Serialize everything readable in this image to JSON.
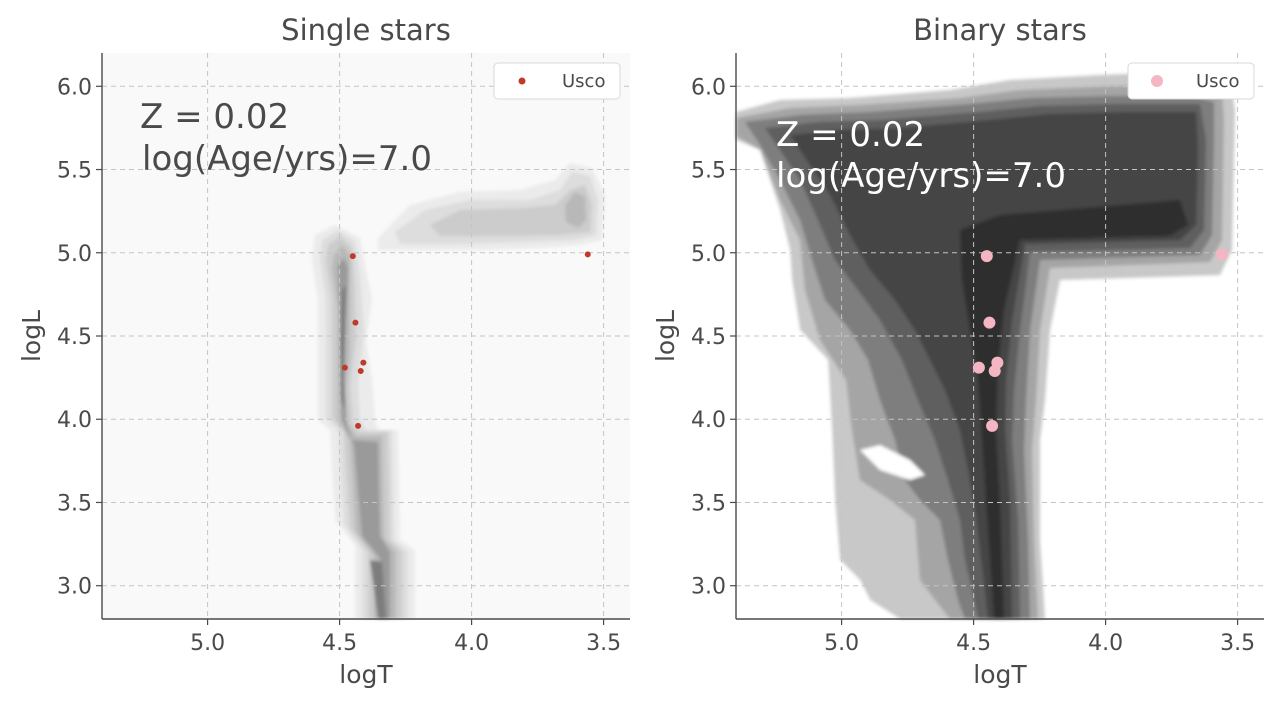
{
  "chart_data": [
    {
      "type": "scatter",
      "title": "Single stars",
      "xlabel": "logT",
      "ylabel": "logL",
      "xlim": [
        5.4,
        3.4
      ],
      "ylim": [
        2.8,
        6.2
      ],
      "x_inverted": true,
      "xticks": [
        "5.0",
        "4.5",
        "4.0",
        "3.5"
      ],
      "yticks": [
        "3.0",
        "3.5",
        "4.0",
        "4.5",
        "5.0",
        "5.5",
        "6.0"
      ],
      "grid": true,
      "legend_position": "top-right",
      "annotation": [
        "Z = 0.02",
        "log(Age/yrs)=7.0"
      ],
      "annotation_color": "#4a4a4a",
      "series": [
        {
          "name": "Usco",
          "color": "#c0392b",
          "marker_radius": 3,
          "x": [
            4.45,
            4.44,
            4.48,
            4.41,
            4.42,
            4.43,
            3.56
          ],
          "y": [
            4.98,
            4.58,
            4.31,
            4.34,
            4.29,
            3.96,
            4.99
          ]
        }
      ],
      "density": {
        "colors": [
          "#ebebeb",
          "#dddddd",
          "#cccccc",
          "#b8b8b8",
          "#9a9a9a",
          "#7d7d7d"
        ],
        "background": "#f9f9f9"
      }
    },
    {
      "type": "scatter",
      "title": "Binary stars",
      "xlabel": "logT",
      "ylabel": "logL",
      "xlim": [
        5.4,
        3.4
      ],
      "ylim": [
        2.8,
        6.2
      ],
      "x_inverted": true,
      "xticks": [
        "5.0",
        "4.5",
        "4.0",
        "3.5"
      ],
      "yticks": [
        "3.0",
        "3.5",
        "4.0",
        "4.5",
        "5.0",
        "5.5",
        "6.0"
      ],
      "grid": true,
      "legend_position": "top-right",
      "annotation": [
        "Z = 0.02",
        "log(Age/yrs)=7.0"
      ],
      "annotation_color": "#ffffff",
      "series": [
        {
          "name": "Usco",
          "color": "#f4b6c2",
          "marker_radius": 6,
          "x": [
            4.45,
            4.44,
            4.48,
            4.41,
            4.42,
            4.43,
            3.56
          ],
          "y": [
            4.98,
            4.58,
            4.31,
            4.34,
            4.29,
            3.96,
            4.99
          ]
        }
      ],
      "density": {
        "colors": [
          "#c8c8c8",
          "#a5a5a5",
          "#7e7e7e",
          "#5e5e5e",
          "#454545",
          "#2f2f2f"
        ],
        "background": "#ffffff"
      }
    }
  ]
}
